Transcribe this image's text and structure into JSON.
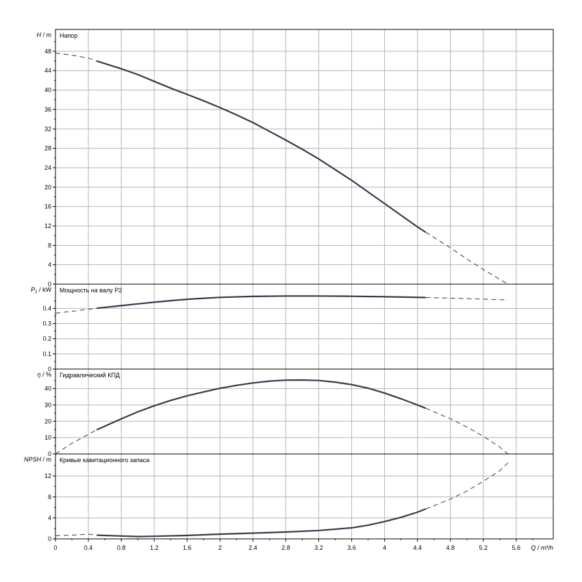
{
  "chart_data": [
    {
      "type": "line",
      "title": "Напор",
      "ylabel_var": "H",
      "ylabel_sub": "",
      "ylabel_unit": "m",
      "yticks": [
        "0",
        "4",
        "8",
        "12",
        "16",
        "20",
        "24",
        "28",
        "32",
        "36",
        "40",
        "44",
        "48"
      ],
      "ylim": [
        0,
        52.5
      ],
      "series": [
        {
          "style": "dashed",
          "x": [
            0,
            0.2,
            0.4,
            0.5
          ],
          "y": [
            47.6,
            47.2,
            46.6,
            46.0
          ]
        },
        {
          "style": "solid",
          "x": [
            0.5,
            0.8,
            1.0,
            1.2,
            1.4,
            1.6,
            1.8,
            2.0,
            2.2,
            2.4,
            2.6,
            2.8,
            3.0,
            3.2,
            3.4,
            3.6,
            3.8,
            4.0,
            4.2,
            4.4,
            4.5
          ],
          "y": [
            46.0,
            44.4,
            43.2,
            41.8,
            40.4,
            39.1,
            37.8,
            36.4,
            34.9,
            33.3,
            31.5,
            29.7,
            27.8,
            25.8,
            23.6,
            21.4,
            19.0,
            16.6,
            14.2,
            11.8,
            10.7
          ]
        },
        {
          "style": "dashed",
          "x": [
            4.5,
            4.8,
            5.0,
            5.2,
            5.4,
            5.5
          ],
          "y": [
            10.7,
            7.5,
            5.2,
            3.0,
            1.0,
            0.0
          ]
        }
      ]
    },
    {
      "type": "line",
      "title": "Мощность на валу P2",
      "ylabel_var": "P",
      "ylabel_sub": "2",
      "ylabel_unit": "kW",
      "yticks": [
        "0",
        "0.1",
        "0.2",
        "0.3",
        "0.4"
      ],
      "ylim": [
        0,
        0.56
      ],
      "series": [
        {
          "style": "dashed",
          "x": [
            0,
            0.2,
            0.4,
            0.5
          ],
          "y": [
            0.368,
            0.381,
            0.394,
            0.401
          ]
        },
        {
          "style": "solid",
          "x": [
            0.5,
            0.8,
            1.0,
            1.2,
            1.4,
            1.6,
            1.8,
            2.0,
            2.4,
            2.8,
            3.2,
            3.6,
            4.0,
            4.5
          ],
          "y": [
            0.401,
            0.418,
            0.43,
            0.441,
            0.451,
            0.46,
            0.467,
            0.473,
            0.479,
            0.482,
            0.482,
            0.48,
            0.477,
            0.472
          ]
        },
        {
          "style": "dashed",
          "x": [
            4.5,
            4.8,
            5.2,
            5.5
          ],
          "y": [
            0.472,
            0.468,
            0.461,
            0.456
          ]
        }
      ]
    },
    {
      "type": "line",
      "title": "Гидравлический КПД",
      "ylabel_var": "η",
      "ylabel_sub": "",
      "ylabel_unit": "%",
      "yticks": [
        "0",
        "10",
        "20",
        "30",
        "40"
      ],
      "ylim": [
        0,
        52
      ],
      "series": [
        {
          "style": "dashed",
          "x": [
            0,
            0.2,
            0.4,
            0.5
          ],
          "y": [
            0,
            6.5,
            12.0,
            14.8
          ]
        },
        {
          "style": "solid",
          "x": [
            0.5,
            0.8,
            1.0,
            1.2,
            1.4,
            1.6,
            1.8,
            2.0,
            2.2,
            2.4,
            2.6,
            2.8,
            3.0,
            3.2,
            3.4,
            3.6,
            3.8,
            4.0,
            4.2,
            4.4,
            4.5
          ],
          "y": [
            14.8,
            21.5,
            25.8,
            29.5,
            32.8,
            35.6,
            38.0,
            40.2,
            42.0,
            43.5,
            44.6,
            45.2,
            45.3,
            45.0,
            44.0,
            42.5,
            40.3,
            37.3,
            33.8,
            30.0,
            28.0
          ]
        },
        {
          "style": "dashed",
          "x": [
            4.5,
            4.8,
            5.0,
            5.2,
            5.4,
            5.5
          ],
          "y": [
            28.0,
            21.5,
            16.5,
            10.8,
            4.2,
            0.0
          ]
        }
      ]
    },
    {
      "type": "line",
      "title": "Кривые кавитационного запаса",
      "ylabel_var": "NPSH",
      "ylabel_sub": "",
      "ylabel_unit": "m",
      "yticks": [
        "0",
        "4",
        "8",
        "12"
      ],
      "ylim": [
        0,
        16.2
      ],
      "series": [
        {
          "style": "dashed",
          "x": [
            0,
            0.2,
            0.4,
            0.5
          ],
          "y": [
            0.6,
            0.7,
            0.9,
            0.7
          ]
        },
        {
          "style": "solid",
          "x": [
            0.5,
            0.8,
            1.0,
            1.2,
            1.6,
            2.0,
            2.4,
            2.8,
            3.2,
            3.6,
            3.8,
            4.0,
            4.2,
            4.4,
            4.5
          ],
          "y": [
            0.7,
            0.55,
            0.45,
            0.5,
            0.65,
            0.9,
            1.1,
            1.3,
            1.6,
            2.1,
            2.6,
            3.3,
            4.1,
            5.1,
            5.7
          ]
        },
        {
          "style": "dashed",
          "x": [
            4.5,
            4.8,
            5.0,
            5.2,
            5.4,
            5.5
          ],
          "y": [
            5.7,
            7.6,
            9.1,
            11.0,
            13.0,
            14.5
          ]
        }
      ]
    }
  ],
  "x_axis": {
    "xticks": [
      "0",
      "0.4",
      "0.8",
      "1.2",
      "1.6",
      "2",
      "2.4",
      "2.8",
      "3.2",
      "3.6",
      "4",
      "4.4",
      "4.8",
      "5.2",
      "5.6"
    ],
    "xlim": [
      0,
      6.05
    ],
    "xlabel_var": "Q",
    "xlabel_unit": "m³/h"
  },
  "colors": {
    "curve": "#333a4a",
    "grid": "#b4b4b4",
    "frame": "#000000"
  }
}
